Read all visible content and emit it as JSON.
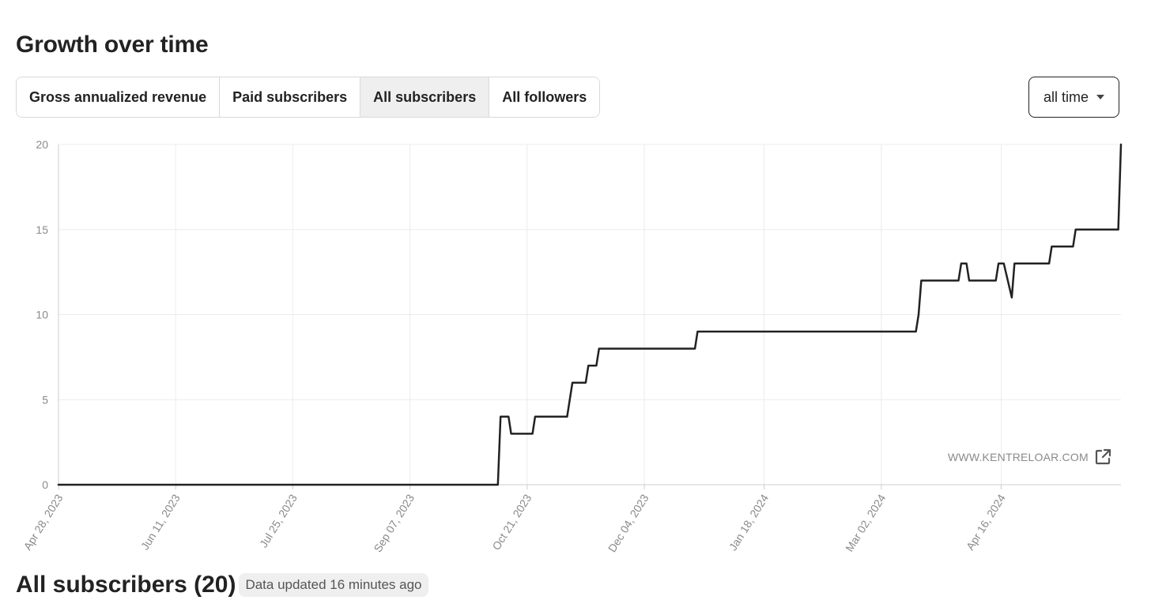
{
  "page_title": "Growth over time",
  "tabs": [
    {
      "label": "Gross annualized revenue",
      "active": false
    },
    {
      "label": "Paid subscribers",
      "active": false
    },
    {
      "label": "All subscribers",
      "active": true
    },
    {
      "label": "All followers",
      "active": false
    }
  ],
  "range_select": {
    "value": "all time"
  },
  "watermark": {
    "text": "WWW.KENTRELOAR.COM",
    "icon": "external-link-icon"
  },
  "section": {
    "title": "All subscribers (20)",
    "updated": "Data updated 16 minutes ago"
  },
  "colors": {
    "line": "#222222",
    "grid": "#ececec",
    "axis": "#cccccc",
    "tick_text": "#8a8a8a"
  },
  "chart_data": {
    "type": "line",
    "step": true,
    "x_tick_labels": [
      "Apr 28, 2023",
      "Jun 11, 2023",
      "Jul 25, 2023",
      "Sep 07, 2023",
      "Oct 21, 2023",
      "Dec 04, 2023",
      "Jan 18, 2024",
      "Mar 02, 2024",
      "Apr 16, 2024"
    ],
    "x_tick_dates": [
      "2023-04-28",
      "2023-06-11",
      "2023-07-25",
      "2023-09-07",
      "2023-10-21",
      "2023-12-04",
      "2024-01-18",
      "2024-03-02",
      "2024-04-16"
    ],
    "xlim": [
      "2023-04-28",
      "2024-05-31"
    ],
    "ylim": [
      0,
      20
    ],
    "y_ticks": [
      0,
      5,
      10,
      15,
      20
    ],
    "grid": true,
    "series": [
      {
        "points": [
          {
            "x": "2023-04-28",
            "y": 0
          },
          {
            "x": "2023-10-10",
            "y": 0
          },
          {
            "x": "2023-10-11",
            "y": 4
          },
          {
            "x": "2023-10-14",
            "y": 4
          },
          {
            "x": "2023-10-15",
            "y": 3
          },
          {
            "x": "2023-10-23",
            "y": 3
          },
          {
            "x": "2023-10-24",
            "y": 4
          },
          {
            "x": "2023-11-05",
            "y": 4
          },
          {
            "x": "2023-11-07",
            "y": 6
          },
          {
            "x": "2023-11-12",
            "y": 6
          },
          {
            "x": "2023-11-13",
            "y": 7
          },
          {
            "x": "2023-11-16",
            "y": 7
          },
          {
            "x": "2023-11-17",
            "y": 8
          },
          {
            "x": "2023-12-23",
            "y": 8
          },
          {
            "x": "2023-12-24",
            "y": 9
          },
          {
            "x": "2024-03-15",
            "y": 9
          },
          {
            "x": "2024-03-16",
            "y": 10
          },
          {
            "x": "2024-03-17",
            "y": 12
          },
          {
            "x": "2024-03-31",
            "y": 12
          },
          {
            "x": "2024-04-01",
            "y": 13
          },
          {
            "x": "2024-04-03",
            "y": 13
          },
          {
            "x": "2024-04-04",
            "y": 12
          },
          {
            "x": "2024-04-14",
            "y": 12
          },
          {
            "x": "2024-04-15",
            "y": 13
          },
          {
            "x": "2024-04-17",
            "y": 13
          },
          {
            "x": "2024-04-20",
            "y": 11
          },
          {
            "x": "2024-04-21",
            "y": 13
          },
          {
            "x": "2024-05-04",
            "y": 13
          },
          {
            "x": "2024-05-05",
            "y": 14
          },
          {
            "x": "2024-05-13",
            "y": 14
          },
          {
            "x": "2024-05-14",
            "y": 15
          },
          {
            "x": "2024-05-30",
            "y": 15
          },
          {
            "x": "2024-05-31",
            "y": 20
          }
        ]
      }
    ]
  }
}
